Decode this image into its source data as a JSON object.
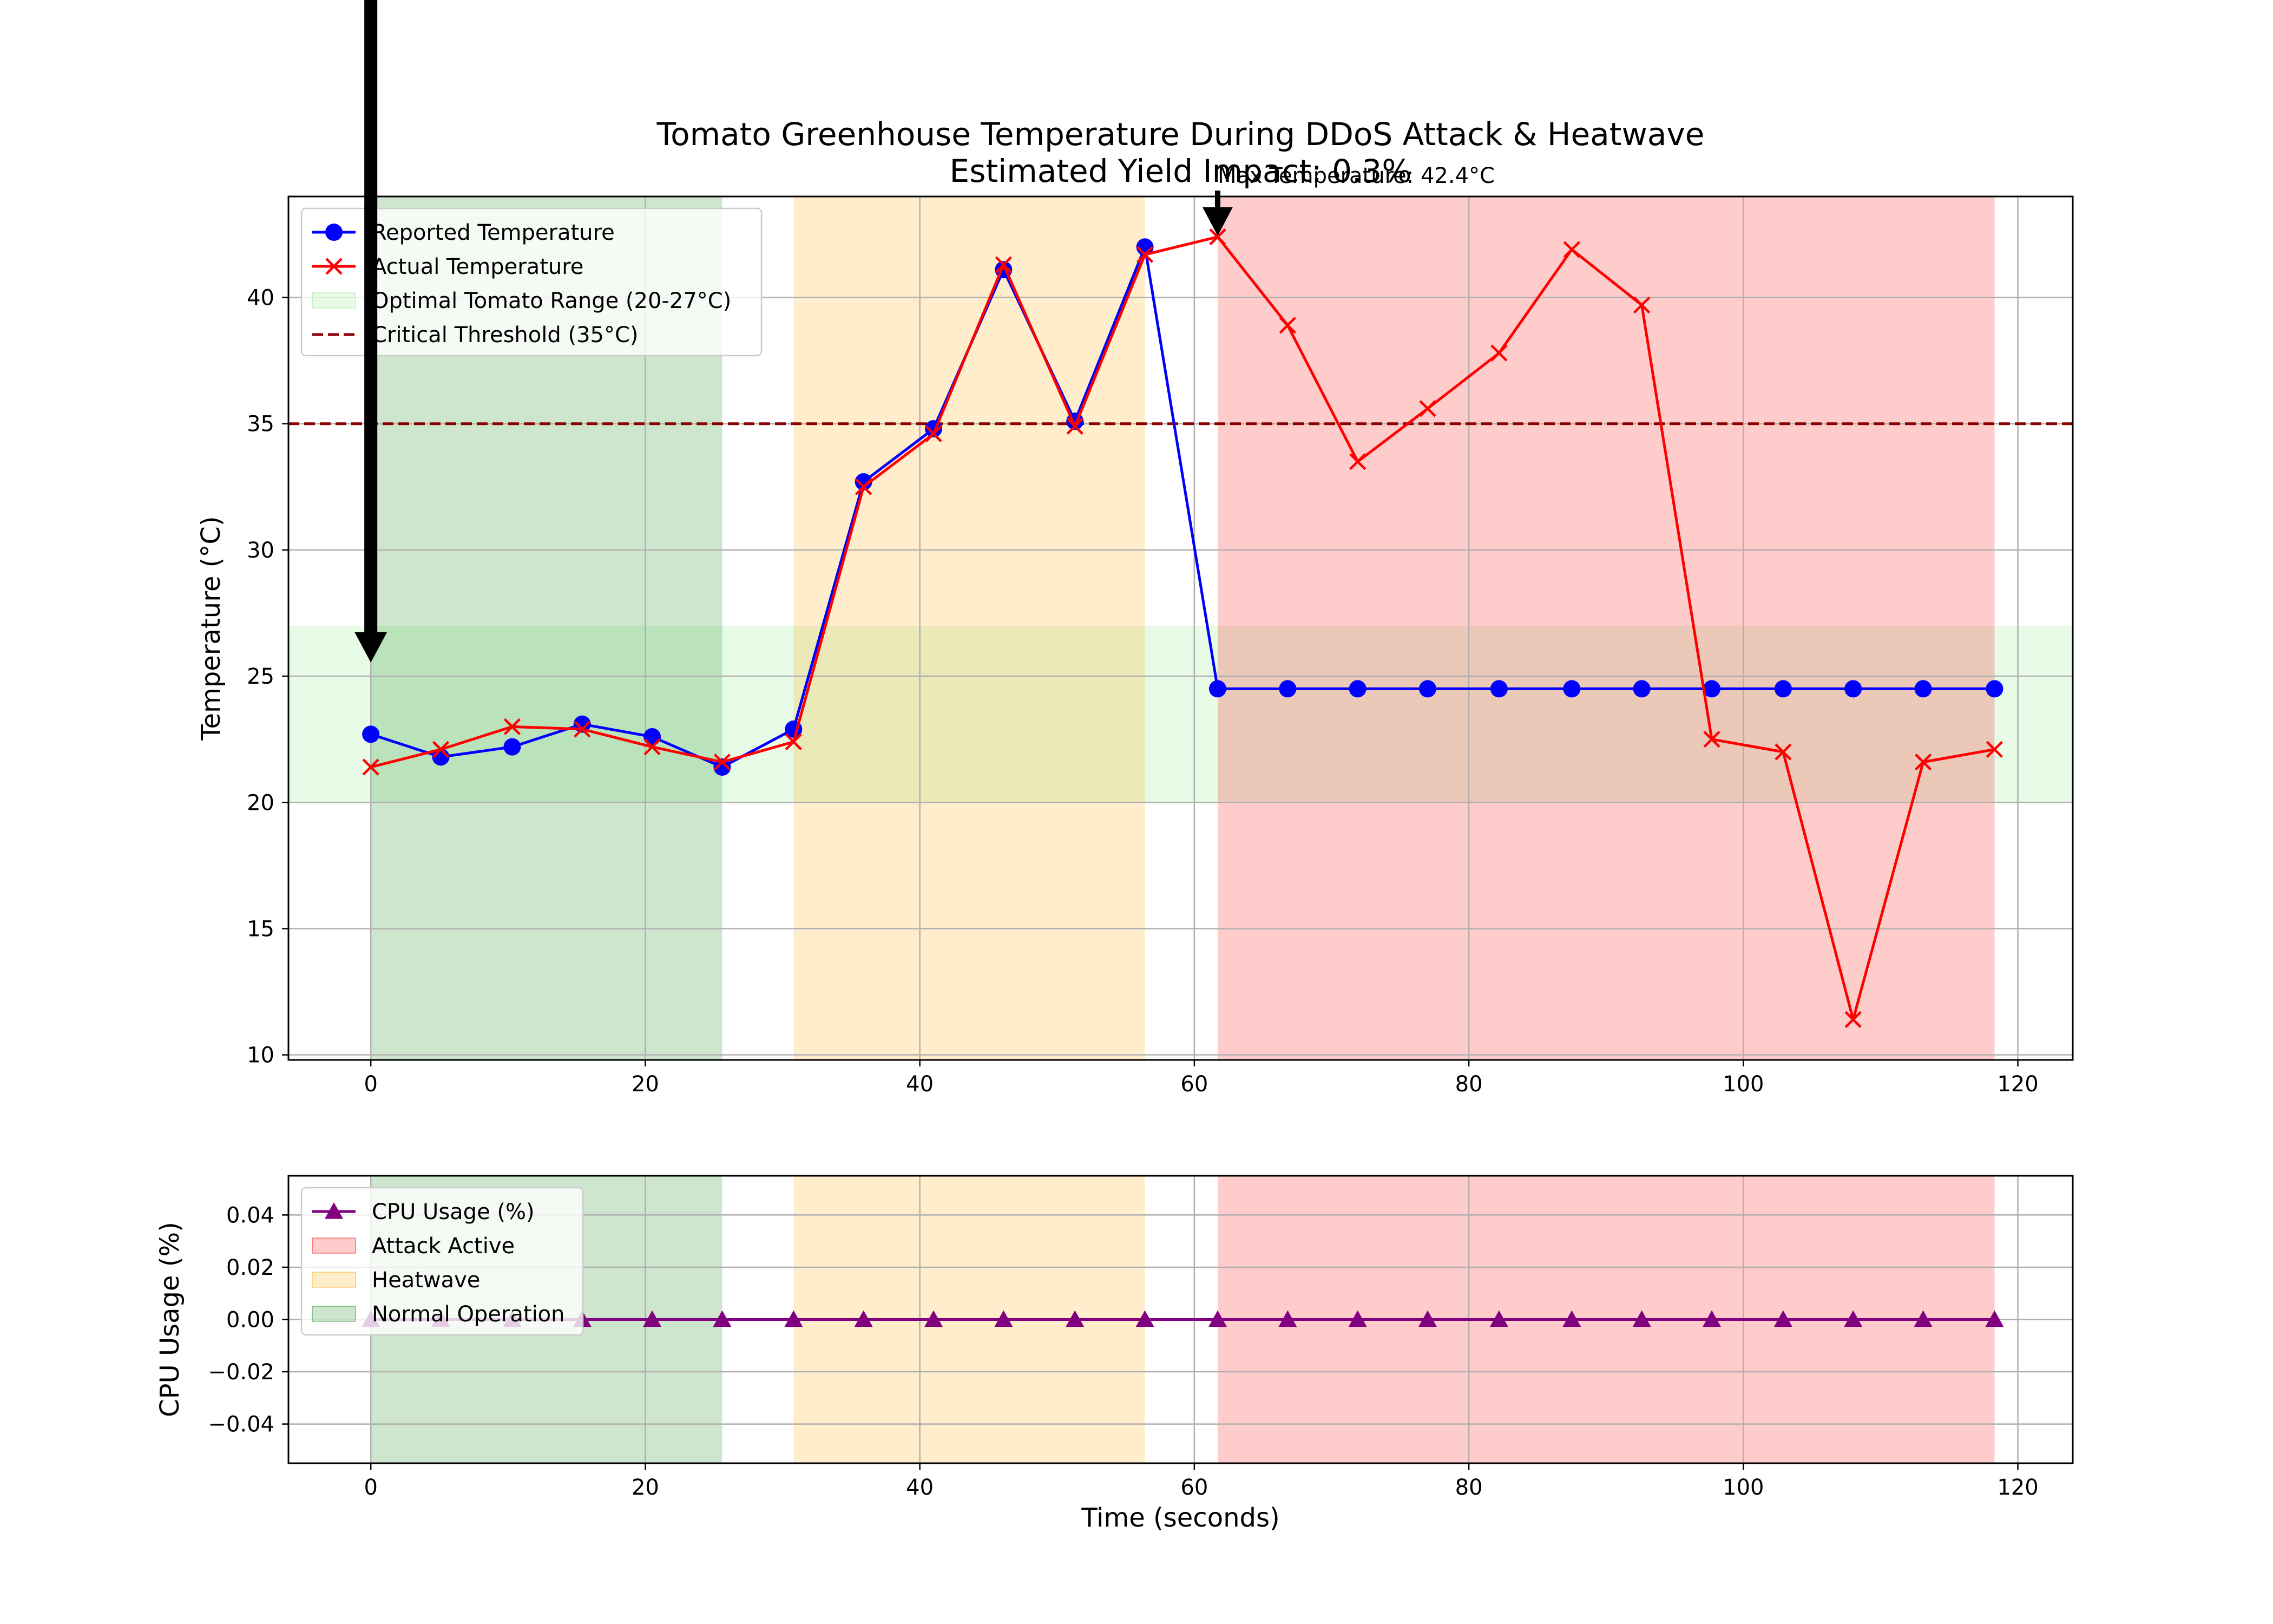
{
  "chart_data": [
    {
      "type": "line",
      "title": "Tomato Greenhouse Temperature During DDoS Attack & Heatwave\nEstimated Yield Impact: 0.3%",
      "xlabel": "",
      "ylabel": "Temperature (°C)",
      "xlim": [
        -6,
        124
      ],
      "ylim": [
        9.8,
        44
      ],
      "xticks": [
        0,
        20,
        40,
        60,
        80,
        100,
        120
      ],
      "yticks": [
        10,
        15,
        20,
        25,
        30,
        35,
        40
      ],
      "grid": true,
      "legend_position": "upper left",
      "x": [
        0,
        5.1,
        10.3,
        15.4,
        20.5,
        25.6,
        30.8,
        35.9,
        41.0,
        46.1,
        51.3,
        56.4,
        61.7,
        66.8,
        71.9,
        77.0,
        82.2,
        87.5,
        92.6,
        97.7,
        102.9,
        108.0,
        113.1,
        118.3
      ],
      "series": [
        {
          "name": "Reported Temperature",
          "color": "#0000ff",
          "marker": "circle",
          "values": [
            22.7,
            21.8,
            22.2,
            23.1,
            22.6,
            21.4,
            22.9,
            32.7,
            34.8,
            41.1,
            35.1,
            42.0,
            24.5,
            24.5,
            24.5,
            24.5,
            24.5,
            24.5,
            24.5,
            24.5,
            24.5,
            24.5,
            24.5,
            24.5
          ]
        },
        {
          "name": "Actual Temperature",
          "color": "#ff0000",
          "marker": "x",
          "values": [
            21.4,
            22.1,
            23.0,
            22.9,
            22.2,
            21.6,
            22.4,
            32.5,
            34.6,
            41.3,
            34.9,
            41.7,
            42.4,
            38.9,
            33.5,
            35.6,
            37.8,
            41.9,
            39.7,
            22.5,
            22.0,
            11.4,
            21.6,
            22.1
          ]
        }
      ],
      "bands": [
        {
          "name": "Optimal Tomato Range (20-27°C)",
          "axis": "y",
          "from": 20,
          "to": 27,
          "color": "#90ee90",
          "alpha": 0.22
        },
        {
          "name": "Normal Operation",
          "axis": "x",
          "from": 0,
          "to": 25.6,
          "color": "#228b22",
          "alpha": 0.22
        },
        {
          "name": "Heatwave",
          "axis": "x",
          "from": 30.8,
          "to": 56.4,
          "color": "#ffa500",
          "alpha": 0.2
        },
        {
          "name": "Attack Active",
          "axis": "x",
          "from": 61.7,
          "to": 118.3,
          "color": "#ff0000",
          "alpha": 0.2
        }
      ],
      "threshold": {
        "name": "Critical Threshold (35°C)",
        "value": 35,
        "color": "#8b0000"
      },
      "annotations": [
        {
          "text": "Max Temperature: 42.4°C",
          "x": 61.7,
          "y": 42.4
        },
        {
          "text": "",
          "x": 0,
          "y": 25.5
        }
      ]
    },
    {
      "type": "line",
      "title": "",
      "xlabel": "Time (seconds)",
      "ylabel": "CPU Usage (%)",
      "xlim": [
        -6,
        124
      ],
      "ylim": [
        -0.055,
        0.055
      ],
      "xticks": [
        0,
        20,
        40,
        60,
        80,
        100,
        120
      ],
      "yticks": [
        -0.04,
        -0.02,
        0.0,
        0.02,
        0.04
      ],
      "ytick_labels": [
        "−0.04",
        "−0.02",
        "0.00",
        "0.02",
        "0.04"
      ],
      "grid": true,
      "legend_position": "upper left",
      "x": [
        0,
        5.1,
        10.3,
        15.4,
        20.5,
        25.6,
        30.8,
        35.9,
        41.0,
        46.1,
        51.3,
        56.4,
        61.7,
        66.8,
        71.9,
        77.0,
        82.2,
        87.5,
        92.6,
        97.7,
        102.9,
        108.0,
        113.1,
        118.3
      ],
      "series": [
        {
          "name": "CPU Usage (%)",
          "color": "#800080",
          "marker": "triangle",
          "values": [
            0,
            0,
            0,
            0,
            0,
            0,
            0,
            0,
            0,
            0,
            0,
            0,
            0,
            0,
            0,
            0,
            0,
            0,
            0,
            0,
            0,
            0,
            0,
            0
          ]
        }
      ],
      "bands": [
        {
          "name": "Attack Active",
          "axis": "x",
          "from": 61.7,
          "to": 118.3,
          "color": "#ff0000",
          "alpha": 0.2
        },
        {
          "name": "Heatwave",
          "axis": "x",
          "from": 30.8,
          "to": 56.4,
          "color": "#ffa500",
          "alpha": 0.2
        },
        {
          "name": "Normal Operation",
          "axis": "x",
          "from": 0,
          "to": 25.6,
          "color": "#228b22",
          "alpha": 0.22
        }
      ]
    }
  ]
}
